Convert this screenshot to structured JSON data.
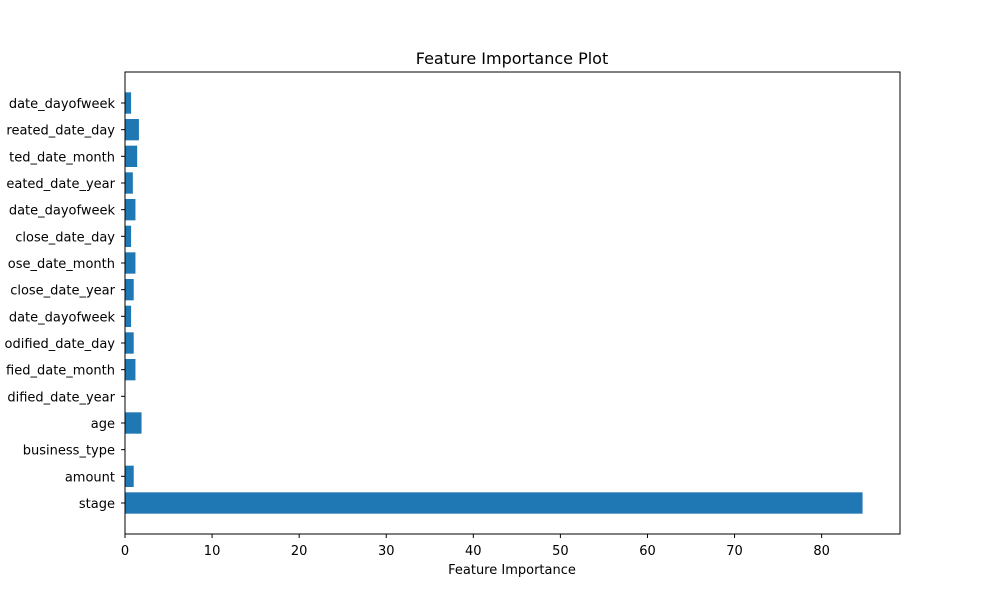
{
  "chart_data": {
    "type": "bar",
    "orientation": "horizontal",
    "title": "Feature Importance Plot",
    "xlabel": "Feature Importance",
    "ylabel": "",
    "xlim": [
      0,
      89
    ],
    "xticks": [
      0,
      10,
      20,
      30,
      40,
      50,
      60,
      70,
      80
    ],
    "grid": false,
    "bar_color": "#1f77b4",
    "categories": [
      "stage",
      "amount",
      "business_type",
      "age",
      "dified_date_year",
      "fied_date_month",
      "odified_date_day",
      "date_dayofweek",
      "close_date_year",
      "ose_date_month",
      "close_date_day",
      "date_dayofweek",
      "eated_date_year",
      "ted_date_month",
      "reated_date_day",
      "date_dayofweek"
    ],
    "values": [
      84.7,
      1.0,
      0.0,
      1.9,
      0.0,
      1.2,
      1.0,
      0.7,
      1.0,
      1.2,
      0.7,
      1.2,
      0.9,
      1.4,
      1.6,
      0.7
    ]
  }
}
